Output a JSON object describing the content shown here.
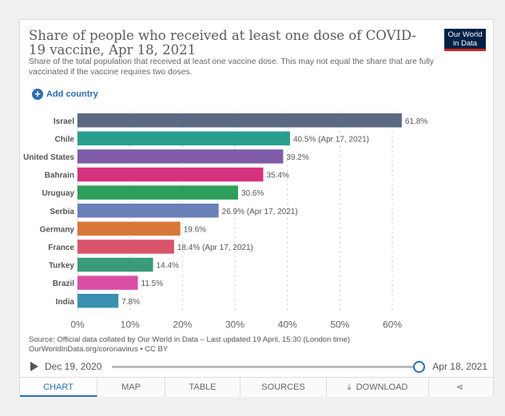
{
  "header": {
    "title": "Share of people who received at least one dose of COVID-19 vaccine, Apr 18, 2021",
    "subtitle": "Share of the total population that received at least one vaccine dose. This may not equal the share that are fully vaccinated if the vaccine requires two doses.",
    "logo_line1": "Our World",
    "logo_line2": "in Data"
  },
  "controls": {
    "add_country_label": "Add country"
  },
  "chart_data": {
    "type": "bar",
    "orientation": "horizontal",
    "categories": [
      "Israel",
      "Chile",
      "United States",
      "Bahrain",
      "Uruguay",
      "Serbia",
      "Germany",
      "France",
      "Turkey",
      "Brazil",
      "India"
    ],
    "values": [
      61.8,
      40.5,
      39.2,
      35.4,
      30.6,
      26.9,
      19.6,
      18.4,
      14.4,
      11.5,
      7.8
    ],
    "value_labels": [
      "61.8%",
      "40.5% (Apr 17, 2021)",
      "39.2%",
      "35.4%",
      "30.6%",
      "26.9% (Apr 17, 2021)",
      "19.6%",
      "18.4% (Apr 17, 2021)",
      "14.4%",
      "11.5%",
      "7.8%"
    ],
    "colors": [
      "#5b6a82",
      "#2a9d8f",
      "#7d5ba6",
      "#d6317d",
      "#2e9e5b",
      "#6b7fb8",
      "#d9773a",
      "#d9536a",
      "#3a9a7a",
      "#d94fa6",
      "#3b8fb0"
    ],
    "xlim": [
      0,
      60
    ],
    "xticks": [
      0,
      10,
      20,
      30,
      40,
      50,
      60
    ],
    "xtick_labels": [
      "0%",
      "10%",
      "20%",
      "30%",
      "40%",
      "50%",
      "60%"
    ],
    "grid": true,
    "gridline_style": "dashed"
  },
  "footer": {
    "source_line1": "Source: Official data collated by Our World in Data – Last updated 19 April, 15:30 (London time)",
    "source_line2": "OurWorldInData.org/coronavirus • CC BY"
  },
  "timeline": {
    "start": "Dec 19, 2020",
    "end": "Apr 18, 2021"
  },
  "tabs": {
    "chart": "Chart",
    "map": "Map",
    "table": "Table",
    "sources": "Sources",
    "download": "Download",
    "share_icon": "share-icon"
  }
}
